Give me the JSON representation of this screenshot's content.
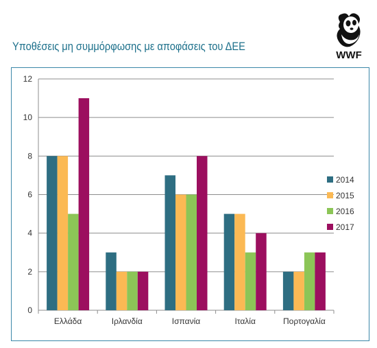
{
  "header": {
    "title": "Υποθέσεις μη συμμόρφωσης με αποφάσεις του ΔΕΕ",
    "logo_text": "WWF"
  },
  "colors": {
    "title": "#1b6f8a",
    "frame": "#3a86a8",
    "grid": "#8c8c8c"
  },
  "chart_data": {
    "type": "bar",
    "title": "Υποθέσεις μη συμμόρφωσης με αποφάσεις του ΔΕΕ",
    "xlabel": "",
    "ylabel": "",
    "categories": [
      "Ελλάδα",
      "Ιρλανδία",
      "Ισπανία",
      "Ιταλία",
      "Πορτογαλία"
    ],
    "ylim": [
      0,
      12
    ],
    "yticks": [
      0,
      2,
      4,
      6,
      8,
      10,
      12
    ],
    "grid": true,
    "legend_position": "right",
    "series": [
      {
        "name": "2014",
        "color": "#2e6e82",
        "values": [
          8,
          3,
          7,
          5,
          2
        ]
      },
      {
        "name": "2015",
        "color": "#fbb954",
        "values": [
          8,
          2,
          6,
          5,
          2
        ]
      },
      {
        "name": "2016",
        "color": "#8cc557",
        "values": [
          5,
          2,
          6,
          3,
          3
        ]
      },
      {
        "name": "2017",
        "color": "#9c0f5f",
        "values": [
          11,
          2,
          8,
          4,
          3
        ]
      }
    ]
  }
}
